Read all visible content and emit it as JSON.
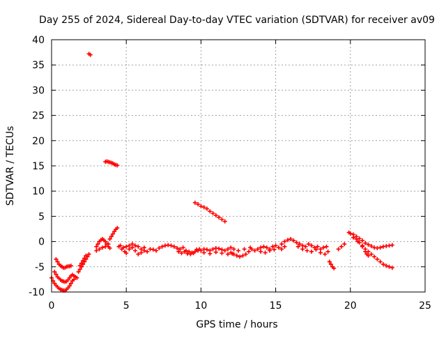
{
  "chart_data": {
    "type": "scatter",
    "title": "Day 255 of 2024, Sidereal Day-to-day VTEC variation (SDTVAR) for receiver av09",
    "xlabel": "GPS time / hours",
    "ylabel": "SDTVAR / TECUs",
    "xlim": [
      0,
      25
    ],
    "ylim": [
      -10,
      40
    ],
    "xticks": [
      0,
      5,
      10,
      15,
      20,
      25
    ],
    "yticks": [
      -10,
      -5,
      0,
      5,
      10,
      15,
      20,
      25,
      30,
      35,
      40
    ],
    "grid": true,
    "marker": "plus",
    "color": "#ff0000",
    "series": [
      {
        "name": "SDTVAR",
        "points": [
          [
            0.0,
            -7.2
          ],
          [
            0.1,
            -7.8
          ],
          [
            0.2,
            -8.3
          ],
          [
            0.3,
            -8.7
          ],
          [
            0.4,
            -9.0
          ],
          [
            0.5,
            -9.3
          ],
          [
            0.6,
            -9.5
          ],
          [
            0.7,
            -9.6
          ],
          [
            0.8,
            -9.7
          ],
          [
            0.9,
            -9.7
          ],
          [
            1.0,
            -9.5
          ],
          [
            1.1,
            -9.2
          ],
          [
            1.2,
            -8.8
          ],
          [
            1.3,
            -8.3
          ],
          [
            1.4,
            -7.8
          ],
          [
            1.5,
            -7.5
          ],
          [
            0.2,
            -6.0
          ],
          [
            0.3,
            -6.5
          ],
          [
            0.4,
            -7.0
          ],
          [
            0.5,
            -7.3
          ],
          [
            0.6,
            -7.6
          ],
          [
            0.7,
            -7.8
          ],
          [
            0.8,
            -7.9
          ],
          [
            0.9,
            -8.0
          ],
          [
            1.0,
            -7.9
          ],
          [
            1.1,
            -7.6
          ],
          [
            1.2,
            -7.2
          ],
          [
            1.3,
            -6.8
          ],
          [
            1.4,
            -6.6
          ],
          [
            1.5,
            -6.8
          ],
          [
            1.6,
            -7.0
          ],
          [
            1.7,
            -7.2
          ],
          [
            0.3,
            -3.5
          ],
          [
            0.4,
            -4.0
          ],
          [
            0.5,
            -4.5
          ],
          [
            0.6,
            -4.8
          ],
          [
            0.7,
            -5.0
          ],
          [
            0.8,
            -5.2
          ],
          [
            0.9,
            -5.2
          ],
          [
            1.0,
            -5.0
          ],
          [
            1.1,
            -4.9
          ],
          [
            1.2,
            -4.9
          ],
          [
            1.3,
            -4.8
          ],
          [
            1.8,
            -6.0
          ],
          [
            1.9,
            -5.5
          ],
          [
            2.0,
            -5.0
          ],
          [
            2.1,
            -4.5
          ],
          [
            2.2,
            -4.0
          ],
          [
            2.3,
            -3.5
          ],
          [
            2.4,
            -3.0
          ],
          [
            2.5,
            -2.5
          ],
          [
            1.9,
            -4.8
          ],
          [
            2.0,
            -4.3
          ],
          [
            2.1,
            -3.8
          ],
          [
            2.2,
            -3.3
          ],
          [
            2.3,
            -2.8
          ],
          [
            2.5,
            37.2
          ],
          [
            2.6,
            37.0
          ],
          [
            3.6,
            15.8
          ],
          [
            3.7,
            15.9
          ],
          [
            3.8,
            15.8
          ],
          [
            3.9,
            15.7
          ],
          [
            4.0,
            15.6
          ],
          [
            4.1,
            15.5
          ],
          [
            4.2,
            15.3
          ],
          [
            4.3,
            15.2
          ],
          [
            4.4,
            15.1
          ],
          [
            3.0,
            -1.0
          ],
          [
            3.1,
            -0.5
          ],
          [
            3.2,
            0.0
          ],
          [
            3.3,
            0.3
          ],
          [
            3.4,
            0.5
          ],
          [
            3.5,
            0.3
          ],
          [
            3.6,
            0.0
          ],
          [
            3.7,
            -0.5
          ],
          [
            3.8,
            -1.0
          ],
          [
            3.9,
            -1.3
          ],
          [
            3.0,
            -1.8
          ],
          [
            3.2,
            -1.5
          ],
          [
            3.4,
            -1.2
          ],
          [
            3.6,
            -1.0
          ],
          [
            3.8,
            -0.5
          ],
          [
            3.9,
            0.5
          ],
          [
            4.0,
            1.0
          ],
          [
            4.1,
            1.5
          ],
          [
            4.2,
            2.0
          ],
          [
            4.3,
            2.4
          ],
          [
            4.4,
            2.7
          ],
          [
            4.5,
            -1.0
          ],
          [
            4.7,
            -1.5
          ],
          [
            4.9,
            -2.0
          ],
          [
            5.0,
            -2.3
          ],
          [
            5.2,
            -1.5
          ],
          [
            5.4,
            -1.2
          ],
          [
            5.6,
            -1.8
          ],
          [
            5.8,
            -2.5
          ],
          [
            6.0,
            -2.2
          ],
          [
            6.2,
            -1.8
          ],
          [
            6.4,
            -2.0
          ],
          [
            6.6,
            -1.5
          ],
          [
            6.8,
            -1.6
          ],
          [
            4.6,
            -0.8
          ],
          [
            4.8,
            -1.2
          ],
          [
            5.0,
            -1.0
          ],
          [
            5.2,
            -0.8
          ],
          [
            5.4,
            -0.5
          ],
          [
            5.6,
            -0.8
          ],
          [
            5.8,
            -1.0
          ],
          [
            6.0,
            -1.5
          ],
          [
            6.2,
            -1.2
          ],
          [
            7.0,
            -1.8
          ],
          [
            7.2,
            -1.3
          ],
          [
            7.4,
            -1.0
          ],
          [
            7.6,
            -0.8
          ],
          [
            7.8,
            -0.7
          ],
          [
            8.0,
            -0.8
          ],
          [
            8.2,
            -1.0
          ],
          [
            8.4,
            -1.3
          ],
          [
            8.6,
            -1.5
          ],
          [
            8.8,
            -1.2
          ],
          [
            9.0,
            -1.8
          ],
          [
            9.2,
            -2.0
          ],
          [
            9.4,
            -2.2
          ],
          [
            9.6,
            -2.0
          ],
          [
            9.8,
            -1.8
          ],
          [
            8.5,
            -2.0
          ],
          [
            8.7,
            -2.3
          ],
          [
            8.9,
            -2.0
          ],
          [
            9.1,
            -2.4
          ],
          [
            9.3,
            -2.5
          ],
          [
            9.5,
            -2.3
          ],
          [
            9.7,
            -1.6
          ],
          [
            9.9,
            -1.5
          ],
          [
            9.6,
            7.7
          ],
          [
            9.8,
            7.4
          ],
          [
            10.0,
            7.0
          ],
          [
            10.2,
            6.8
          ],
          [
            10.4,
            6.5
          ],
          [
            10.6,
            6.0
          ],
          [
            10.8,
            5.6
          ],
          [
            11.0,
            5.2
          ],
          [
            11.2,
            4.8
          ],
          [
            11.4,
            4.4
          ],
          [
            11.6,
            4.0
          ],
          [
            10.0,
            -1.8
          ],
          [
            10.2,
            -1.5
          ],
          [
            10.4,
            -1.6
          ],
          [
            10.6,
            -1.8
          ],
          [
            10.8,
            -1.5
          ],
          [
            11.0,
            -1.3
          ],
          [
            11.2,
            -1.4
          ],
          [
            11.4,
            -1.6
          ],
          [
            11.6,
            -1.8
          ],
          [
            11.8,
            -1.5
          ],
          [
            12.0,
            -1.2
          ],
          [
            12.2,
            -1.5
          ],
          [
            10.2,
            -2.2
          ],
          [
            10.6,
            -2.4
          ],
          [
            11.0,
            -2.1
          ],
          [
            11.4,
            -2.3
          ],
          [
            11.8,
            -2.5
          ],
          [
            12.1,
            -2.4
          ],
          [
            12.0,
            -2.2
          ],
          [
            12.2,
            -2.5
          ],
          [
            12.4,
            -2.8
          ],
          [
            12.6,
            -3.0
          ],
          [
            12.8,
            -2.8
          ],
          [
            13.0,
            -2.5
          ],
          [
            13.2,
            -2.0
          ],
          [
            12.5,
            -1.8
          ],
          [
            12.9,
            -1.5
          ],
          [
            13.3,
            -1.2
          ],
          [
            13.4,
            -1.5
          ],
          [
            13.6,
            -1.8
          ],
          [
            13.8,
            -1.5
          ],
          [
            14.0,
            -1.2
          ],
          [
            14.2,
            -1.0
          ],
          [
            14.4,
            -1.2
          ],
          [
            14.6,
            -1.5
          ],
          [
            14.8,
            -1.0
          ],
          [
            15.0,
            -0.8
          ],
          [
            15.2,
            -1.2
          ],
          [
            15.4,
            -1.5
          ],
          [
            15.6,
            -1.0
          ],
          [
            14.0,
            -2.0
          ],
          [
            14.3,
            -2.2
          ],
          [
            14.6,
            -1.8
          ],
          [
            14.9,
            -1.6
          ],
          [
            15.4,
            -0.5
          ],
          [
            15.6,
            0.0
          ],
          [
            15.8,
            0.3
          ],
          [
            16.0,
            0.5
          ],
          [
            16.2,
            0.2
          ],
          [
            16.4,
            -0.2
          ],
          [
            16.6,
            -0.5
          ],
          [
            16.8,
            -0.8
          ],
          [
            17.0,
            -1.0
          ],
          [
            17.2,
            -0.5
          ],
          [
            17.4,
            -0.8
          ],
          [
            17.6,
            -1.2
          ],
          [
            17.8,
            -1.0
          ],
          [
            18.0,
            -1.5
          ],
          [
            18.2,
            -1.2
          ],
          [
            18.4,
            -1.0
          ],
          [
            16.5,
            -1.0
          ],
          [
            16.8,
            -1.5
          ],
          [
            17.1,
            -1.8
          ],
          [
            17.4,
            -2.0
          ],
          [
            17.7,
            -1.6
          ],
          [
            18.0,
            -2.2
          ],
          [
            18.3,
            -2.5
          ],
          [
            18.5,
            -2.0
          ],
          [
            18.6,
            -4.0
          ],
          [
            18.7,
            -4.5
          ],
          [
            18.8,
            -5.0
          ],
          [
            18.9,
            -5.3
          ],
          [
            19.2,
            -1.5
          ],
          [
            19.4,
            -1.0
          ],
          [
            19.6,
            -0.5
          ],
          [
            19.9,
            1.8
          ],
          [
            20.0,
            1.6
          ],
          [
            20.2,
            1.4
          ],
          [
            20.4,
            1.0
          ],
          [
            20.6,
            0.6
          ],
          [
            20.8,
            0.2
          ],
          [
            21.0,
            -0.3
          ],
          [
            21.2,
            -0.6
          ],
          [
            21.4,
            -0.9
          ],
          [
            21.6,
            -1.2
          ],
          [
            21.8,
            -1.3
          ],
          [
            22.0,
            -1.2
          ],
          [
            22.2,
            -1.0
          ],
          [
            22.4,
            -0.9
          ],
          [
            22.6,
            -0.8
          ],
          [
            22.8,
            -0.7
          ],
          [
            20.4,
            0.5
          ],
          [
            20.6,
            -0.2
          ],
          [
            20.8,
            -1.0
          ],
          [
            21.0,
            -1.5
          ],
          [
            21.2,
            -2.0
          ],
          [
            21.4,
            -2.5
          ],
          [
            21.6,
            -3.0
          ],
          [
            21.8,
            -3.5
          ],
          [
            22.0,
            -4.0
          ],
          [
            22.2,
            -4.5
          ],
          [
            22.4,
            -4.8
          ],
          [
            22.6,
            -5.0
          ],
          [
            22.8,
            -5.2
          ],
          [
            20.2,
            0.8
          ],
          [
            20.5,
            0.0
          ],
          [
            20.8,
            -0.8
          ],
          [
            21.0,
            -2.0
          ],
          [
            21.1,
            -2.5
          ],
          [
            21.2,
            -2.8
          ]
        ]
      }
    ]
  }
}
